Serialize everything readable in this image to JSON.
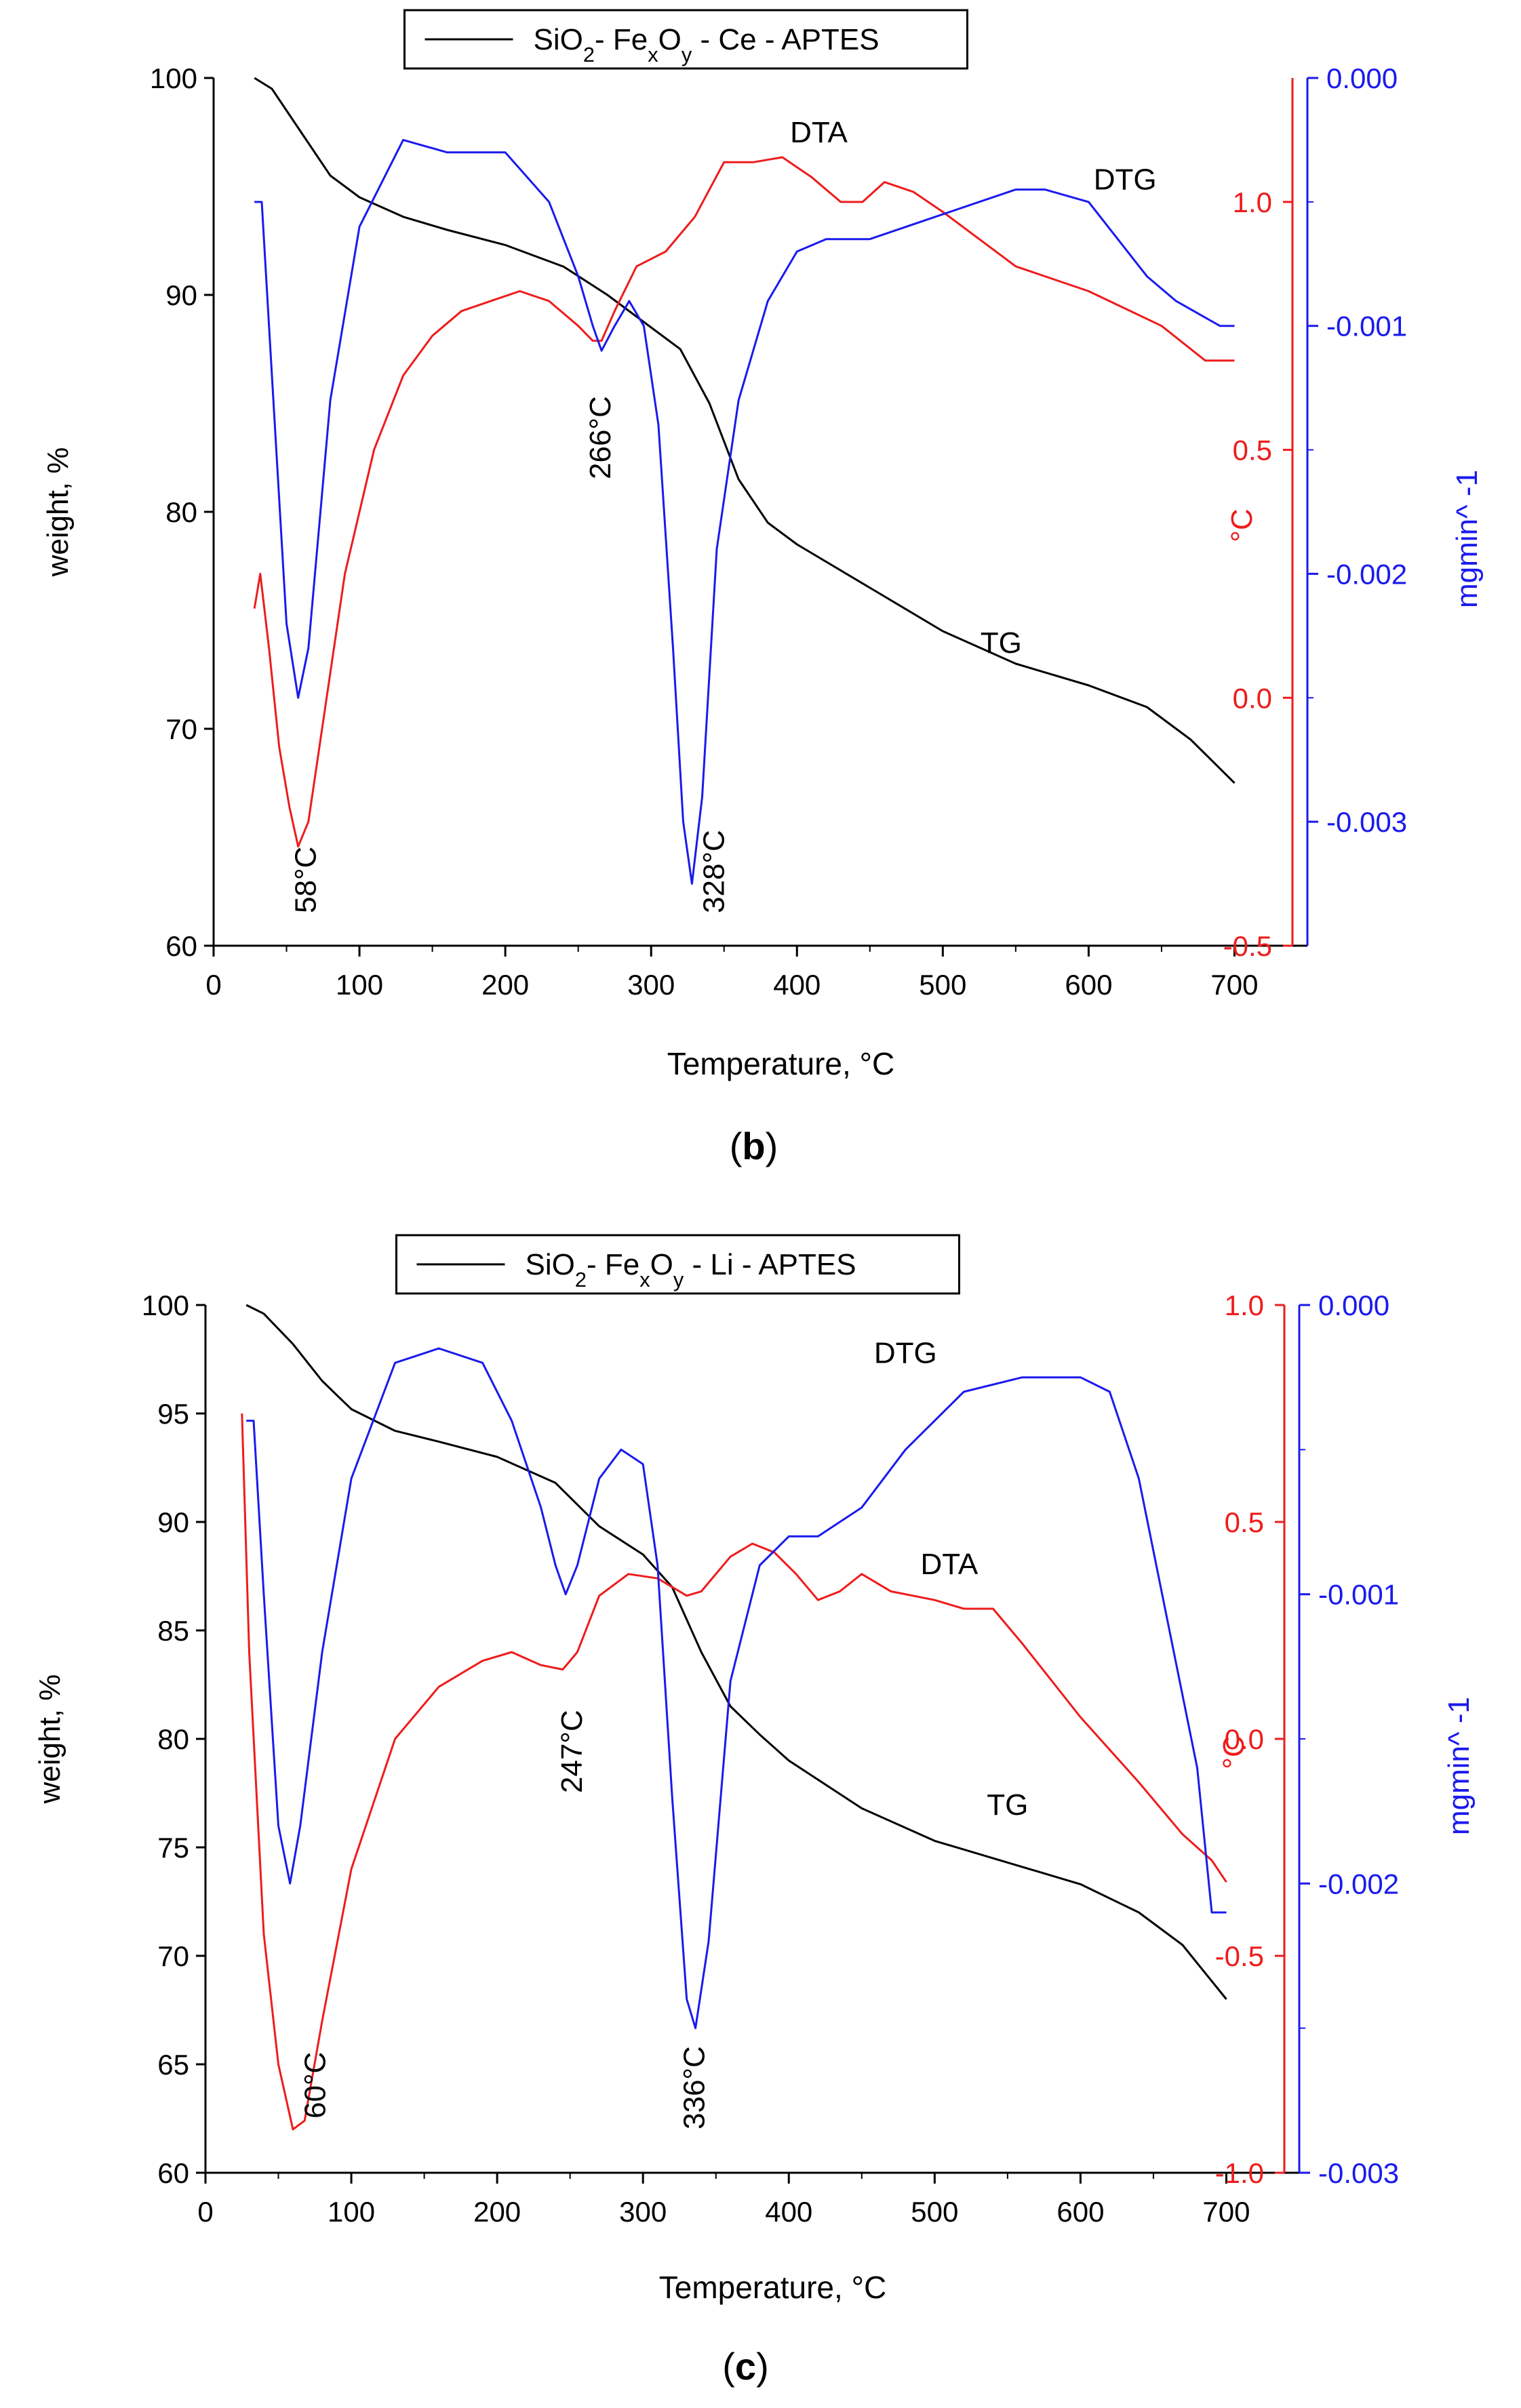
{
  "colors": {
    "tg": "#000000",
    "dta": "#ee1c1c",
    "dtg": "#1a1aee",
    "axis": "#000000"
  },
  "chart_data": [
    {
      "type": "line",
      "panel_label": "b",
      "legend": "SiO2- FexOy - Ce - APTES",
      "legend_placement": "top-center",
      "xlabel": "Temperature, °C",
      "xlim": [
        0,
        750
      ],
      "x_ticks": [
        "0",
        "100",
        "200",
        "300",
        "400",
        "500",
        "600",
        "700"
      ],
      "left_axis": {
        "label": "weight, %",
        "lim": [
          60,
          100
        ],
        "ticks": [
          "60",
          "70",
          "80",
          "90",
          "100"
        ]
      },
      "right_axis_1": {
        "label": "°C",
        "lim": [
          -0.5,
          1.25
        ],
        "ticks": [
          "-0.5",
          "0.0",
          "0.5",
          "1.0"
        ]
      },
      "right_axis_2": {
        "label": "mgmin^ -1",
        "lim": [
          -0.0035,
          0
        ],
        "ticks": [
          "-0.003",
          "-0.002",
          "-0.001",
          "0.000"
        ]
      },
      "series": [
        {
          "name": "TG",
          "axis": "left",
          "x": [
            28,
            40,
            60,
            80,
            100,
            130,
            160,
            200,
            240,
            270,
            300,
            320,
            340,
            360,
            380,
            400,
            450,
            500,
            550,
            600,
            640,
            670,
            700
          ],
          "y": [
            100,
            99.5,
            97.5,
            95.5,
            94.5,
            93.6,
            93,
            92.3,
            91.3,
            90,
            88.5,
            87.5,
            85,
            81.5,
            79.5,
            78.5,
            76.5,
            74.5,
            73,
            72,
            71,
            69.5,
            67.5
          ]
        },
        {
          "name": "DTA",
          "axis": "right_1",
          "x": [
            28,
            32,
            38,
            45,
            52,
            58,
            65,
            75,
            90,
            110,
            130,
            150,
            170,
            190,
            210,
            230,
            250,
            260,
            266,
            275,
            290,
            310,
            330,
            350,
            370,
            390,
            410,
            430,
            445,
            460,
            480,
            500,
            550,
            600,
            650,
            680,
            700
          ],
          "y": [
            0.18,
            0.25,
            0.1,
            -0.1,
            -0.22,
            -0.3,
            -0.25,
            -0.05,
            0.25,
            0.5,
            0.65,
            0.73,
            0.78,
            0.8,
            0.82,
            0.8,
            0.75,
            0.72,
            0.72,
            0.78,
            0.87,
            0.9,
            0.97,
            1.08,
            1.08,
            1.09,
            1.05,
            1.0,
            1.0,
            1.04,
            1.02,
            0.98,
            0.87,
            0.82,
            0.75,
            0.68,
            0.68
          ]
        },
        {
          "name": "DTG",
          "axis": "right_2",
          "x": [
            28,
            33,
            40,
            50,
            58,
            65,
            80,
            100,
            130,
            160,
            200,
            230,
            250,
            260,
            266,
            275,
            285,
            295,
            305,
            315,
            322,
            328,
            335,
            345,
            360,
            380,
            400,
            420,
            450,
            500,
            550,
            570,
            600,
            640,
            660,
            690,
            700
          ],
          "y": [
            -0.0005,
            -0.0005,
            -0.0012,
            -0.0022,
            -0.0025,
            -0.0023,
            -0.0013,
            -0.0006,
            -0.00025,
            -0.0003,
            -0.0003,
            -0.0005,
            -0.0008,
            -0.001,
            -0.0011,
            -0.001,
            -0.0009,
            -0.001,
            -0.0014,
            -0.0023,
            -0.003,
            -0.00325,
            -0.0029,
            -0.0019,
            -0.0013,
            -0.0009,
            -0.0007,
            -0.00065,
            -0.00065,
            -0.00055,
            -0.00045,
            -0.00045,
            -0.0005,
            -0.0008,
            -0.0009,
            -0.001,
            -0.001
          ]
        }
      ],
      "annotations": [
        {
          "text": "TG",
          "x": 540,
          "y": 73.5,
          "axis": "left",
          "rotated": false
        },
        {
          "text": "DTA",
          "x": 415,
          "y": 1.12,
          "axis": "right_1",
          "rotated": false
        },
        {
          "text": "DTG",
          "x": 625,
          "y": -0.00045,
          "axis": "right_2",
          "rotated": false
        },
        {
          "text": "58°C",
          "x": 70,
          "y": 61.5,
          "axis": "left",
          "rotated": true
        },
        {
          "text": "266°C",
          "x": 272,
          "y": 81.5,
          "axis": "left",
          "rotated": true
        },
        {
          "text": "328°C",
          "x": 350,
          "y": 61.5,
          "axis": "left",
          "rotated": true
        }
      ]
    },
    {
      "type": "line",
      "panel_label": "c",
      "legend": "SiO2- FexOy - Li - APTES",
      "legend_placement": "top-center",
      "xlabel": "Temperature, °C",
      "xlim": [
        0,
        750
      ],
      "x_ticks": [
        "0",
        "100",
        "200",
        "300",
        "400",
        "500",
        "600",
        "700"
      ],
      "left_axis": {
        "label": "weight, %",
        "lim": [
          60,
          100
        ],
        "ticks": [
          "60",
          "65",
          "70",
          "75",
          "80",
          "85",
          "90",
          "95",
          "100"
        ]
      },
      "right_axis_1": {
        "label": "°C",
        "lim": [
          -1.0,
          1.0
        ],
        "ticks": [
          "-1.0",
          "-0.5",
          "0.0",
          "0.5",
          "1.0"
        ]
      },
      "right_axis_2": {
        "label": "mgmin^ -1",
        "lim": [
          -0.003,
          0
        ],
        "ticks": [
          "-0.003",
          "-0.002",
          "-0.001",
          "0.000"
        ]
      },
      "series": [
        {
          "name": "TG",
          "axis": "left",
          "x": [
            28,
            40,
            60,
            80,
            100,
            130,
            160,
            200,
            240,
            270,
            300,
            320,
            340,
            360,
            380,
            400,
            450,
            500,
            550,
            600,
            640,
            670,
            700
          ],
          "y": [
            100,
            99.6,
            98.2,
            96.5,
            95.2,
            94.2,
            93.7,
            93,
            91.8,
            89.8,
            88.5,
            87,
            84,
            81.5,
            80.2,
            79,
            76.8,
            75.3,
            74.3,
            73.3,
            72,
            70.5,
            68
          ]
        },
        {
          "name": "DTA",
          "axis": "right_1",
          "x": [
            25,
            30,
            40,
            50,
            60,
            68,
            80,
            100,
            130,
            160,
            190,
            210,
            230,
            245,
            255,
            270,
            290,
            310,
            330,
            340,
            360,
            375,
            390,
            405,
            420,
            435,
            450,
            470,
            500,
            520,
            540,
            560,
            600,
            640,
            670,
            690,
            700
          ],
          "y": [
            0.75,
            0.2,
            -0.45,
            -0.75,
            -0.9,
            -0.88,
            -0.65,
            -0.3,
            0.0,
            0.12,
            0.18,
            0.2,
            0.17,
            0.16,
            0.2,
            0.33,
            0.38,
            0.37,
            0.33,
            0.34,
            0.42,
            0.45,
            0.43,
            0.38,
            0.32,
            0.34,
            0.38,
            0.34,
            0.32,
            0.3,
            0.3,
            0.22,
            0.05,
            -0.1,
            -0.22,
            -0.28,
            -0.33
          ]
        },
        {
          "name": "DTG",
          "axis": "right_2",
          "x": [
            28,
            33,
            40,
            50,
            58,
            65,
            80,
            100,
            130,
            160,
            190,
            210,
            230,
            240,
            247,
            255,
            270,
            285,
            300,
            310,
            320,
            330,
            336,
            345,
            360,
            380,
            400,
            420,
            450,
            480,
            520,
            560,
            600,
            620,
            640,
            660,
            680,
            690,
            700
          ],
          "y": [
            -0.0004,
            -0.0004,
            -0.001,
            -0.0018,
            -0.002,
            -0.0018,
            -0.0012,
            -0.0006,
            -0.0002,
            -0.00015,
            -0.0002,
            -0.0004,
            -0.0007,
            -0.0009,
            -0.001,
            -0.0009,
            -0.0006,
            -0.0005,
            -0.00055,
            -0.0009,
            -0.0017,
            -0.0024,
            -0.0025,
            -0.0022,
            -0.0013,
            -0.0009,
            -0.0008,
            -0.0008,
            -0.0007,
            -0.0005,
            -0.0003,
            -0.00025,
            -0.00025,
            -0.0003,
            -0.0006,
            -0.0011,
            -0.0016,
            -0.0021,
            -0.0021
          ]
        }
      ],
      "annotations": [
        {
          "text": "TG",
          "x": 550,
          "y": 76.5,
          "axis": "left",
          "rotated": false
        },
        {
          "text": "DTA",
          "x": 510,
          "y": 0.38,
          "axis": "right_1",
          "rotated": false
        },
        {
          "text": "DTG",
          "x": 480,
          "y": -0.0002,
          "axis": "right_2",
          "rotated": false
        },
        {
          "text": "60°C",
          "x": 82,
          "y": 62.5,
          "axis": "left",
          "rotated": true
        },
        {
          "text": "247°C",
          "x": 258,
          "y": 77.5,
          "axis": "left",
          "rotated": true
        },
        {
          "text": "336°C",
          "x": 342,
          "y": 62,
          "axis": "left",
          "rotated": true
        }
      ]
    }
  ]
}
